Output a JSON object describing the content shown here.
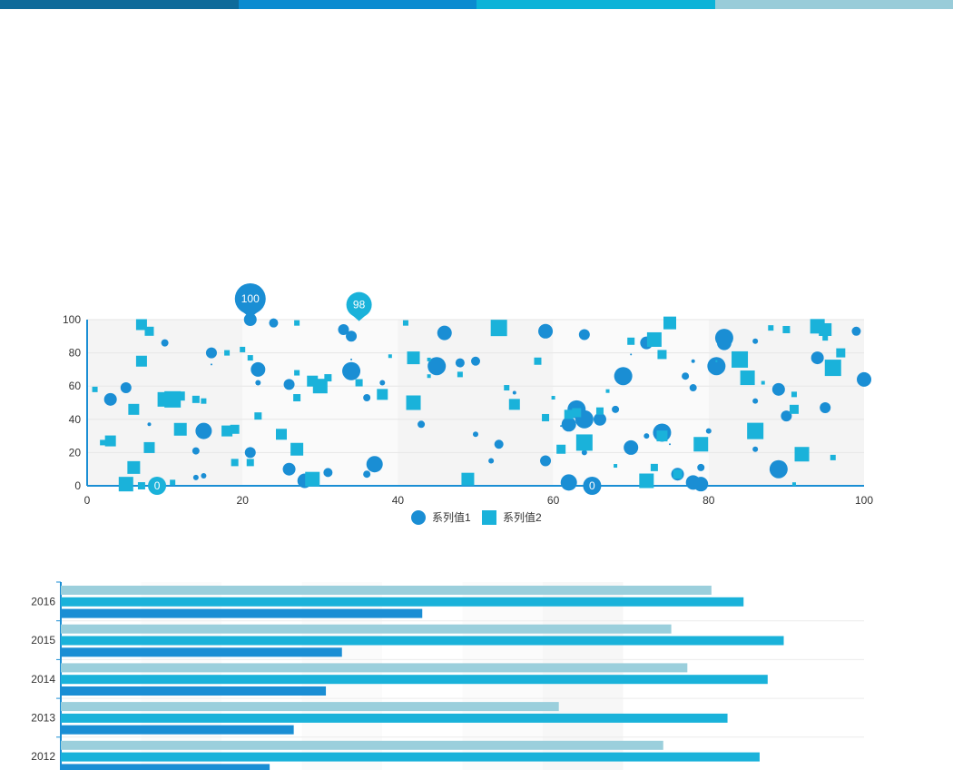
{
  "header": {
    "colors": [
      "#0e6a9a",
      "#0a8bd0",
      "#0cb3d8",
      "#99ccd9"
    ]
  },
  "chart_data": [
    {
      "type": "scatter",
      "title": "",
      "xlabel": "",
      "ylabel": "",
      "xlim": [
        0,
        100
      ],
      "ylim": [
        0,
        100
      ],
      "x_ticks": [
        "0",
        "20",
        "40",
        "60",
        "80",
        "100"
      ],
      "y_ticks": [
        "0",
        "20",
        "40",
        "60",
        "80",
        "100"
      ],
      "legend_position": "bottom-center",
      "grid": true,
      "series": [
        {
          "name": "系列值1",
          "marker": "circle",
          "color": "#1a8ed4",
          "points": [
            [
              3,
              52,
              7
            ],
            [
              5,
              59,
              6
            ],
            [
              8,
              37,
              2
            ],
            [
              10,
              86,
              4
            ],
            [
              14,
              21,
              4
            ],
            [
              14,
              5,
              3
            ],
            [
              15,
              6,
              3
            ],
            [
              15,
              33,
              9
            ],
            [
              16,
              80,
              6
            ],
            [
              16,
              73,
              1
            ],
            [
              21,
              100,
              7
            ],
            [
              21,
              20,
              6
            ],
            [
              22,
              62,
              3
            ],
            [
              22,
              70,
              8
            ],
            [
              24,
              98,
              5
            ],
            [
              26,
              61,
              6
            ],
            [
              26,
              10,
              7
            ],
            [
              28,
              3,
              8
            ],
            [
              31,
              8,
              5
            ],
            [
              33,
              94,
              6
            ],
            [
              34,
              90,
              6
            ],
            [
              34,
              69,
              10
            ],
            [
              34,
              76,
              1
            ],
            [
              36,
              7,
              4
            ],
            [
              36,
              53,
              4
            ],
            [
              37,
              13,
              9
            ],
            [
              38,
              62,
              3
            ],
            [
              43,
              37,
              4
            ],
            [
              45,
              72,
              10
            ],
            [
              46,
              92,
              8
            ],
            [
              48,
              74,
              5
            ],
            [
              50,
              75,
              5
            ],
            [
              50,
              31,
              3
            ],
            [
              52,
              15,
              3
            ],
            [
              53,
              25,
              5
            ],
            [
              55,
              56,
              2
            ],
            [
              59,
              15,
              6
            ],
            [
              59,
              93,
              8
            ],
            [
              61,
              36,
              1
            ],
            [
              62,
              37,
              8
            ],
            [
              62,
              2,
              9
            ],
            [
              63,
              46,
              10
            ],
            [
              64,
              20,
              3
            ],
            [
              64,
              40,
              10
            ],
            [
              64,
              91,
              6
            ],
            [
              65,
              0,
              6
            ],
            [
              66,
              40,
              7
            ],
            [
              68,
              46,
              4
            ],
            [
              69,
              66,
              10
            ],
            [
              70,
              23,
              8
            ],
            [
              70,
              79,
              1
            ],
            [
              72,
              86,
              7
            ],
            [
              72,
              30,
              3
            ],
            [
              74,
              31,
              4
            ],
            [
              74,
              32,
              10
            ],
            [
              75,
              25,
              1
            ],
            [
              76,
              7,
              7
            ],
            [
              77,
              66,
              4
            ],
            [
              78,
              2,
              8
            ],
            [
              78,
              75,
              2
            ],
            [
              78,
              59,
              4
            ],
            [
              79,
              1,
              8
            ],
            [
              79,
              11,
              4
            ],
            [
              80,
              33,
              3
            ],
            [
              81,
              72,
              10
            ],
            [
              82,
              89,
              10
            ],
            [
              82,
              86,
              8
            ],
            [
              86,
              87,
              3
            ],
            [
              86,
              51,
              3
            ],
            [
              86,
              22,
              3
            ],
            [
              89,
              58,
              7
            ],
            [
              89,
              10,
              10
            ],
            [
              90,
              42,
              6
            ],
            [
              94,
              77,
              7
            ],
            [
              95,
              47,
              6
            ],
            [
              99,
              93,
              5
            ],
            [
              100,
              64,
              8
            ]
          ]
        },
        {
          "name": "系列值2",
          "marker": "square",
          "color": "#1ab2da",
          "points": [
            [
              1,
              58,
              3
            ],
            [
              2,
              26,
              3
            ],
            [
              3,
              27,
              6
            ],
            [
              5,
              1,
              8
            ],
            [
              6,
              11,
              7
            ],
            [
              6,
              46,
              6
            ],
            [
              7,
              97,
              6
            ],
            [
              7,
              75,
              6
            ],
            [
              7,
              0,
              4
            ],
            [
              8,
              93,
              5
            ],
            [
              8,
              23,
              6
            ],
            [
              9,
              0,
              5
            ],
            [
              10,
              52,
              8
            ],
            [
              11,
              52,
              9
            ],
            [
              11,
              2,
              3
            ],
            [
              12,
              34,
              7
            ],
            [
              12,
              54,
              5
            ],
            [
              14,
              52,
              4
            ],
            [
              15,
              51,
              3
            ],
            [
              18,
              33,
              6
            ],
            [
              18,
              80,
              3
            ],
            [
              19,
              34,
              5
            ],
            [
              19,
              14,
              4
            ],
            [
              20,
              82,
              3
            ],
            [
              21,
              77,
              3
            ],
            [
              21,
              14,
              4
            ],
            [
              22,
              42,
              4
            ],
            [
              25,
              31,
              6
            ],
            [
              27,
              22,
              7
            ],
            [
              27,
              53,
              4
            ],
            [
              27,
              68,
              3
            ],
            [
              27,
              98,
              3
            ],
            [
              29,
              4,
              8
            ],
            [
              29,
              63,
              6
            ],
            [
              30,
              60,
              8
            ],
            [
              31,
              65,
              4
            ],
            [
              35,
              62,
              4
            ],
            [
              38,
              55,
              6
            ],
            [
              39,
              78,
              2
            ],
            [
              41,
              98,
              3
            ],
            [
              42,
              50,
              8
            ],
            [
              42,
              77,
              7
            ],
            [
              44,
              66,
              2
            ],
            [
              44,
              76,
              2
            ],
            [
              48,
              67,
              3
            ],
            [
              49,
              4,
              7
            ],
            [
              53,
              95,
              9
            ],
            [
              54,
              59,
              3
            ],
            [
              55,
              49,
              6
            ],
            [
              58,
              75,
              4
            ],
            [
              59,
              41,
              4
            ],
            [
              60,
              53,
              2
            ],
            [
              61,
              22,
              5
            ],
            [
              62,
              43,
              5
            ],
            [
              63,
              44,
              5
            ],
            [
              64,
              26,
              9
            ],
            [
              66,
              45,
              4
            ],
            [
              67,
              57,
              2
            ],
            [
              68,
              12,
              2
            ],
            [
              70,
              87,
              4
            ],
            [
              72,
              3,
              8
            ],
            [
              73,
              88,
              8
            ],
            [
              73,
              11,
              4
            ],
            [
              74,
              79,
              5
            ],
            [
              74,
              30,
              6
            ],
            [
              75,
              98,
              7
            ],
            [
              76,
              7,
              5
            ],
            [
              79,
              25,
              8
            ],
            [
              81,
              75,
              1
            ],
            [
              84,
              76,
              9
            ],
            [
              85,
              65,
              8
            ],
            [
              86,
              33,
              9
            ],
            [
              87,
              62,
              2
            ],
            [
              88,
              95,
              3
            ],
            [
              90,
              94,
              4
            ],
            [
              91,
              46,
              5
            ],
            [
              91,
              55,
              3
            ],
            [
              91,
              1,
              2
            ],
            [
              92,
              19,
              8
            ],
            [
              94,
              96,
              8
            ],
            [
              95,
              94,
              7
            ],
            [
              95,
              89,
              3
            ],
            [
              96,
              71,
              9
            ],
            [
              96,
              17,
              3
            ],
            [
              97,
              80,
              5
            ]
          ]
        }
      ],
      "markpoints": [
        {
          "series": "系列值1",
          "label": "100",
          "x": 21,
          "y": 100
        },
        {
          "series": "系列值2",
          "label": "98",
          "x": 35,
          "y": 98
        },
        {
          "series": "系列值1",
          "label": "0",
          "x": 65,
          "y": 0
        },
        {
          "series": "系列值2",
          "label": "0",
          "x": 9,
          "y": 0
        }
      ]
    },
    {
      "type": "bar",
      "orientation": "horizontal",
      "title": "",
      "xlabel": "",
      "ylabel": "",
      "xlim": [
        0,
        100
      ],
      "categories": [
        "2016",
        "2015",
        "2014",
        "2013",
        "2012"
      ],
      "series": [
        {
          "color": "#9bcfdc",
          "values": [
            81,
            76,
            78,
            62,
            75
          ]
        },
        {
          "color": "#1ab2da",
          "values": [
            85,
            90,
            88,
            83,
            87
          ]
        },
        {
          "color": "#1a8ed4",
          "values": [
            45,
            35,
            33,
            29,
            26
          ]
        }
      ]
    }
  ]
}
